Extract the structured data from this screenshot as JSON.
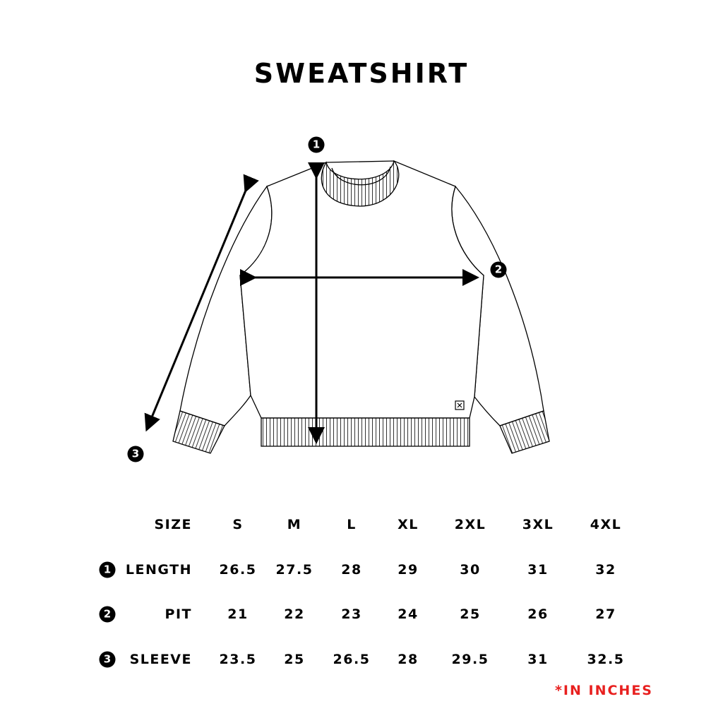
{
  "title": "SWEATSHIRT",
  "diagram_markers": [
    "1",
    "2",
    "3"
  ],
  "table": {
    "size_label": "SIZE",
    "sizes": [
      "S",
      "M",
      "L",
      "XL",
      "2XL",
      "3XL",
      "4XL"
    ],
    "rows": [
      {
        "marker": "1",
        "label": "LENGTH",
        "values": [
          "26.5",
          "27.5",
          "28",
          "29",
          "30",
          "31",
          "32"
        ]
      },
      {
        "marker": "2",
        "label": "PIT",
        "values": [
          "21",
          "22",
          "23",
          "24",
          "25",
          "26",
          "27"
        ]
      },
      {
        "marker": "3",
        "label": "SLEEVE",
        "values": [
          "23.5",
          "25",
          "26.5",
          "28",
          "29.5",
          "31",
          "32.5"
        ]
      }
    ]
  },
  "note": "*IN INCHES",
  "colors": {
    "note": "#e8201f",
    "ink": "#000000"
  }
}
